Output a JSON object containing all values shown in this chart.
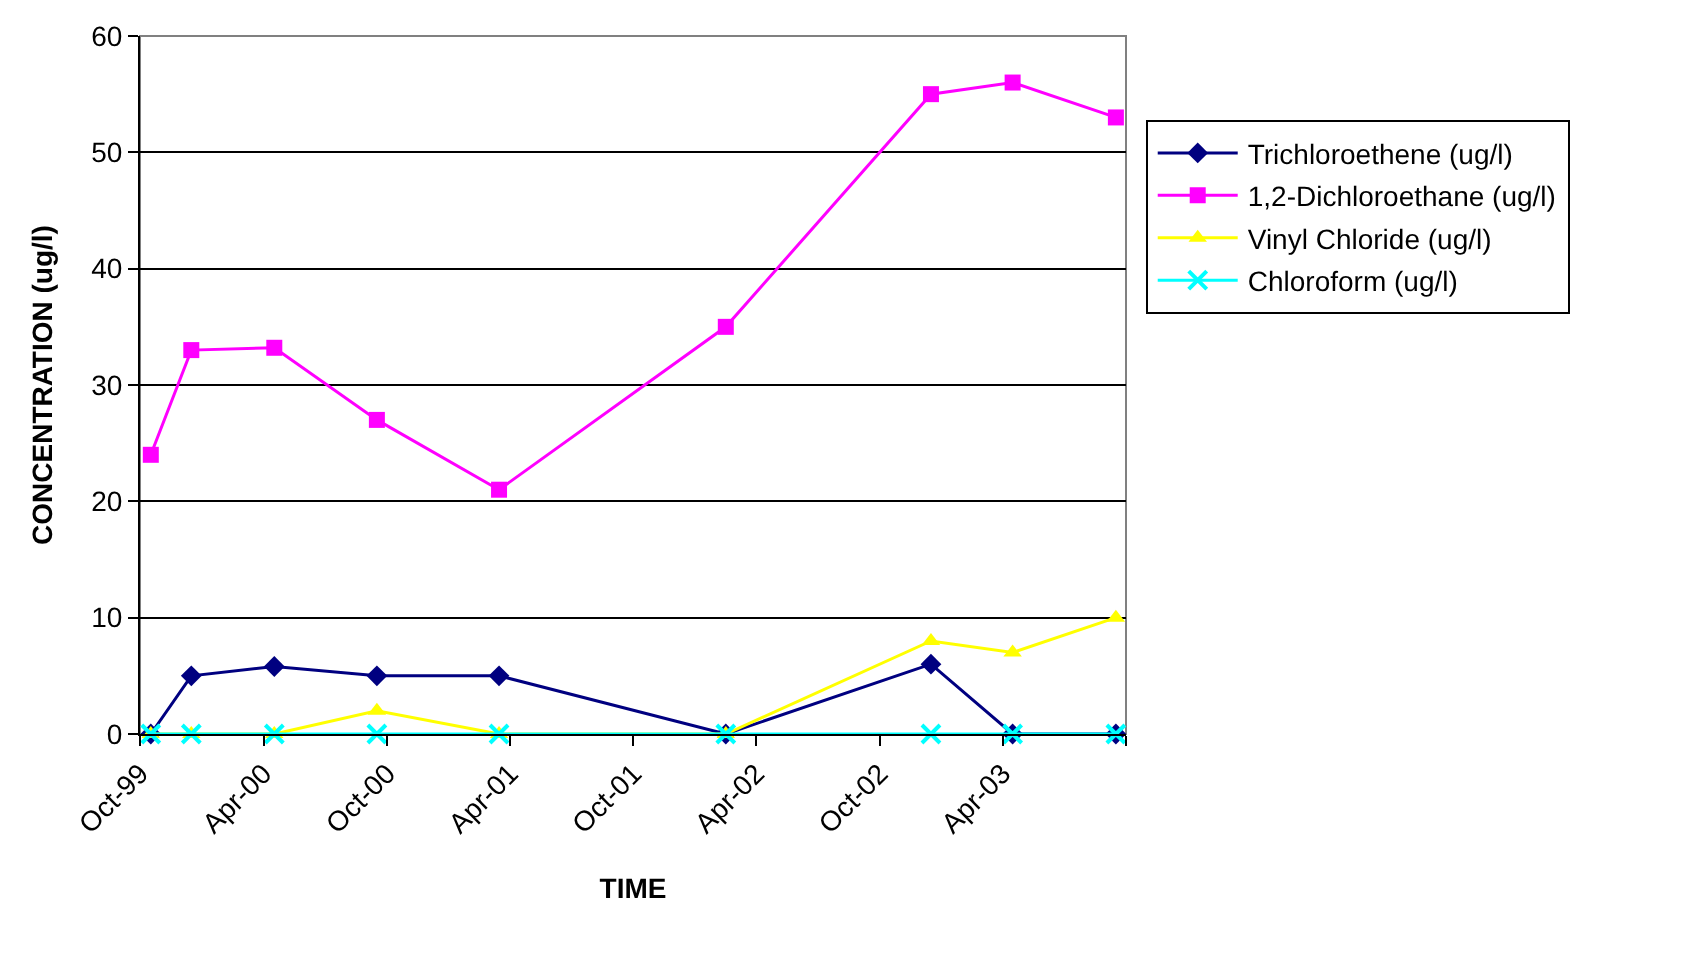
{
  "chart_data": {
    "type": "line",
    "xlabel": "TIME",
    "ylabel": "CONCENTRATION (ug/l)",
    "x": [
      "1999-10-17",
      "1999-12-16",
      "2000-04-17",
      "2000-09-16",
      "2001-03-16",
      "2002-02-15",
      "2002-12-16",
      "2003-04-16",
      "2003-09-16"
    ],
    "series": [
      {
        "name": "Trichloroethene (ug/l)",
        "color": "#000080",
        "marker": "diamond",
        "values": [
          0,
          5,
          5.8,
          5,
          5,
          0,
          6,
          0,
          0
        ]
      },
      {
        "name": "1,2-Dichloroethane (ug/l)",
        "color": "#ff00ff",
        "marker": "square",
        "values": [
          24,
          33,
          33.2,
          27,
          21,
          35,
          55,
          56,
          53
        ]
      },
      {
        "name": "Vinyl Chloride (ug/l)",
        "color": "#ffff00",
        "marker": "triangle",
        "values": [
          0,
          0,
          0,
          2,
          0,
          0,
          8,
          7,
          10
        ]
      },
      {
        "name": "Chloroform (ug/l)",
        "color": "#00ffff",
        "marker": "cross",
        "values": [
          0,
          0,
          0,
          0,
          0,
          0,
          0,
          0,
          0
        ]
      }
    ],
    "xlim": [
      "1999-10-01",
      "2003-10-01"
    ],
    "xticks": [
      {
        "value": "1999-10-01",
        "label": "Oct-99"
      },
      {
        "value": "2000-04-01",
        "label": "Apr-00"
      },
      {
        "value": "2000-10-01",
        "label": "Oct-00"
      },
      {
        "value": "2001-04-01",
        "label": "Apr-01"
      },
      {
        "value": "2001-10-01",
        "label": "Oct-01"
      },
      {
        "value": "2002-04-01",
        "label": "Apr-02"
      },
      {
        "value": "2002-10-01",
        "label": "Oct-02"
      },
      {
        "value": "2003-04-01",
        "label": "Apr-03"
      },
      {
        "value": "2003-10-01",
        "label": null
      }
    ],
    "ylim": [
      0,
      60
    ],
    "yticks": [
      0,
      10,
      20,
      30,
      40,
      50,
      60
    ],
    "grid": "y",
    "legend": "right"
  }
}
